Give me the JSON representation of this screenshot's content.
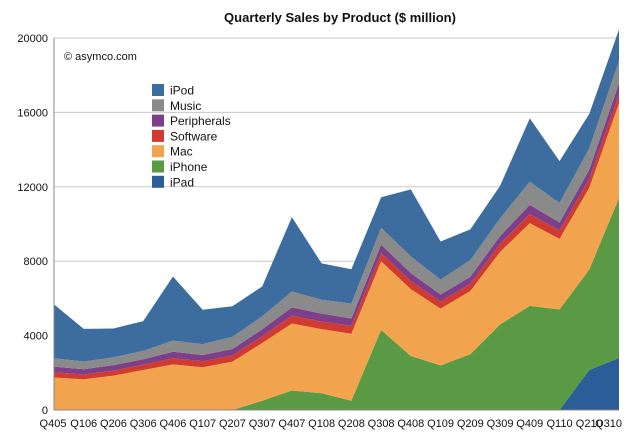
{
  "chart_data": {
    "type": "area",
    "stacked": true,
    "title": "Quarterly Sales by Product ($ million)",
    "credit": "© asymco.com",
    "xlabel": "",
    "ylabel": "",
    "ylim": [
      0,
      20000
    ],
    "yticks": [
      0,
      4000,
      8000,
      12000,
      16000,
      20000
    ],
    "grid": true,
    "legend_position": "upper-left",
    "categories": [
      "Q405",
      "Q106",
      "Q206",
      "Q306",
      "Q406",
      "Q107",
      "Q207",
      "Q307",
      "Q407",
      "Q108",
      "Q208",
      "Q308",
      "Q408",
      "Q109",
      "Q209",
      "Q309",
      "Q409",
      "Q110",
      "Q210",
      "Q310"
    ],
    "series": [
      {
        "name": "iPad",
        "color": "#2b5d99",
        "values": [
          0,
          0,
          0,
          0,
          0,
          0,
          0,
          0,
          0,
          0,
          0,
          0,
          0,
          0,
          0,
          0,
          0,
          0,
          2150,
          2800
        ]
      },
      {
        "name": "iPhone",
        "color": "#5a9a44",
        "values": [
          0,
          0,
          0,
          0,
          0,
          0,
          0,
          500,
          1050,
          900,
          500,
          4300,
          2900,
          2400,
          3000,
          4600,
          5600,
          5400,
          5400,
          8600
        ]
      },
      {
        "name": "Mac",
        "color": "#f2a34e",
        "values": [
          1750,
          1650,
          1850,
          2150,
          2450,
          2300,
          2600,
          3100,
          3600,
          3450,
          3600,
          3700,
          3600,
          3050,
          3400,
          3900,
          4450,
          3800,
          4400,
          5100
        ]
      },
      {
        "name": "Software",
        "color": "#d03a2f",
        "values": [
          280,
          260,
          270,
          280,
          330,
          320,
          330,
          360,
          420,
          400,
          420,
          430,
          430,
          380,
          380,
          430,
          480,
          450,
          470,
          500
        ]
      },
      {
        "name": "Peripherals",
        "color": "#7d3f8a",
        "values": [
          300,
          280,
          290,
          300,
          350,
          340,
          350,
          380,
          450,
          430,
          400,
          460,
          430,
          380,
          380,
          420,
          500,
          430,
          500,
          560
        ]
      },
      {
        "name": "Music",
        "color": "#8a8a8a",
        "values": [
          450,
          420,
          420,
          450,
          600,
          580,
          650,
          700,
          850,
          750,
          800,
          900,
          900,
          800,
          900,
          950,
          1250,
          1050,
          1150,
          1200
        ]
      },
      {
        "name": "iPod",
        "color": "#3d6d9f",
        "values": [
          2900,
          1750,
          1550,
          1600,
          3450,
          1850,
          1650,
          1600,
          4000,
          1950,
          1850,
          1650,
          3600,
          2050,
          1650,
          1750,
          3400,
          2250,
          1850,
          1700
        ]
      }
    ],
    "legend_entries": [
      "iPod",
      "Music",
      "Peripherals",
      "Software",
      "Mac",
      "iPhone",
      "iPad"
    ]
  }
}
